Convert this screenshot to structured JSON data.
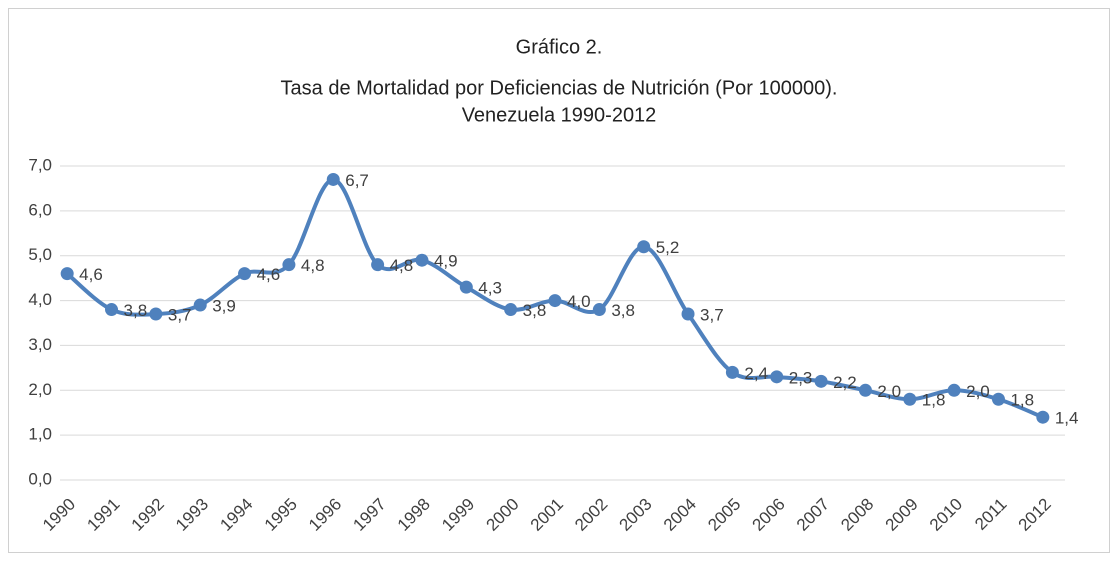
{
  "chart_data": {
    "type": "line",
    "title": [
      "Gráfico 2.",
      "Tasa de Mortalidad por Deficiencias de Nutrición (Por 100000).",
      "Venezuela 1990-2012"
    ],
    "categories": [
      "1990",
      "1991",
      "1992",
      "1993",
      "1994",
      "1995",
      "1996",
      "1997",
      "1998",
      "1999",
      "2000",
      "2001",
      "2002",
      "2003",
      "2004",
      "2005",
      "2006",
      "2007",
      "2008",
      "2009",
      "2010",
      "2011",
      "2012"
    ],
    "series": [
      {
        "color": "#4f81bd",
        "values": [
          4.6,
          3.8,
          3.7,
          3.9,
          4.6,
          4.8,
          6.7,
          4.8,
          4.9,
          4.3,
          3.8,
          4.0,
          3.8,
          5.2,
          3.7,
          2.4,
          2.3,
          2.2,
          2.0,
          1.8,
          2.0,
          1.8,
          1.4
        ],
        "value_labels": [
          "4,6",
          "3,8",
          "3,7",
          "3,9",
          "4,6",
          "4,8",
          "6,7",
          "4,8",
          "4,9",
          "4,3",
          "3,8",
          "4,0",
          "3,8",
          "5,2",
          "3,7",
          "2,4",
          "2,3",
          "2,2",
          "2,0",
          "1,8",
          "2,0",
          "1,8",
          "1,4"
        ]
      }
    ],
    "ylim": [
      0,
      7
    ],
    "yticks": [
      {
        "value": 0,
        "label": "0,0"
      },
      {
        "value": 1,
        "label": "1,0"
      },
      {
        "value": 2,
        "label": "2,0"
      },
      {
        "value": 3,
        "label": "3,0"
      },
      {
        "value": 4,
        "label": "4,0"
      },
      {
        "value": 5,
        "label": "5,0"
      },
      {
        "value": 6,
        "label": "6,0"
      },
      {
        "value": 7,
        "label": "7,0"
      }
    ],
    "grid": true,
    "smooth": true
  }
}
